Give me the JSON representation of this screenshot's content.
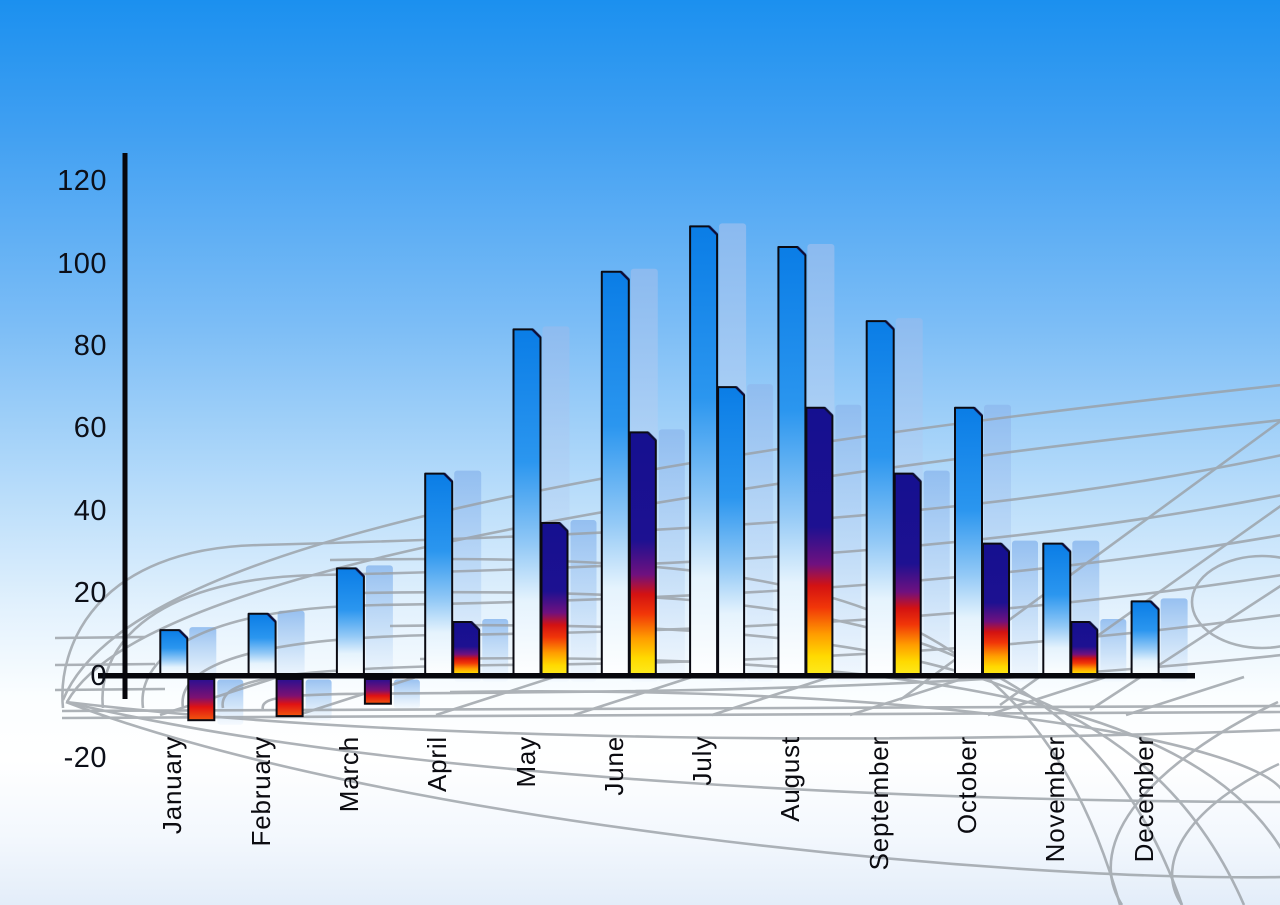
{
  "chart_data": {
    "type": "bar",
    "title": "",
    "xlabel": "",
    "ylabel": "",
    "categories": [
      "January",
      "February",
      "March",
      "April",
      "May",
      "June",
      "July",
      "August",
      "September",
      "October",
      "November",
      "December"
    ],
    "series": [
      {
        "name": "primary-blue-bars",
        "values": [
          11,
          15,
          26,
          49,
          84,
          98,
          109,
          104,
          86,
          65,
          32,
          18
        ]
      },
      {
        "name": "secondary-multicolor-bars",
        "values": [
          -10,
          -9,
          -6,
          13,
          37,
          59,
          70,
          65,
          49,
          32,
          13,
          null
        ],
        "bar_styles": [
          "multi",
          "multi",
          "multi",
          "multi",
          "multi",
          "multi",
          "blue",
          "multi",
          "multi",
          "multi",
          "multi",
          null
        ]
      }
    ],
    "y_ticks": [
      120,
      100,
      80,
      60,
      40,
      20,
      0,
      -20
    ],
    "ylim": [
      -20,
      120
    ],
    "x_tick_rotation": -90,
    "legend": "none",
    "grid": "decorative gray perspective floor grid",
    "shadow_bars": "each bar has a pale translucent echo bar offset to the right"
  },
  "colors": {
    "sky_top": "#1b90ef",
    "sky_mid": "#7cbdf6",
    "sky_bottom": "#e3edf9",
    "axis": "#07070c",
    "bar_outline": "#0a0a12",
    "grid_line": "#9aa0a6",
    "tick_text": "#0c0f18",
    "month_text": "#0b0b10",
    "gradients": {
      "primary": [
        [
          0,
          "#0a7de6"
        ],
        [
          0.38,
          "#2b96ef"
        ],
        [
          0.62,
          "#93c9f6"
        ],
        [
          0.78,
          "#e5f3fd"
        ],
        [
          1,
          "#ffffff"
        ]
      ],
      "echo": [
        [
          0,
          "#8fbbef",
          0.9
        ],
        [
          0.55,
          "#bcd8f6",
          0.72
        ],
        [
          1,
          "#eef5fd",
          0.55
        ]
      ],
      "secondary_positive": [
        [
          0,
          "#151090"
        ],
        [
          0.44,
          "#1d1191"
        ],
        [
          0.58,
          "#6f117f"
        ],
        [
          0.66,
          "#d31212"
        ],
        [
          0.74,
          "#f13608"
        ],
        [
          0.84,
          "#ff9d00"
        ],
        [
          0.92,
          "#ffd900"
        ],
        [
          1,
          "#fcee21"
        ]
      ],
      "secondary_negative": [
        [
          0,
          "#2a1091"
        ],
        [
          0.45,
          "#7c1172"
        ],
        [
          0.68,
          "#e01212"
        ],
        [
          1,
          "#f2570e"
        ]
      ]
    }
  }
}
